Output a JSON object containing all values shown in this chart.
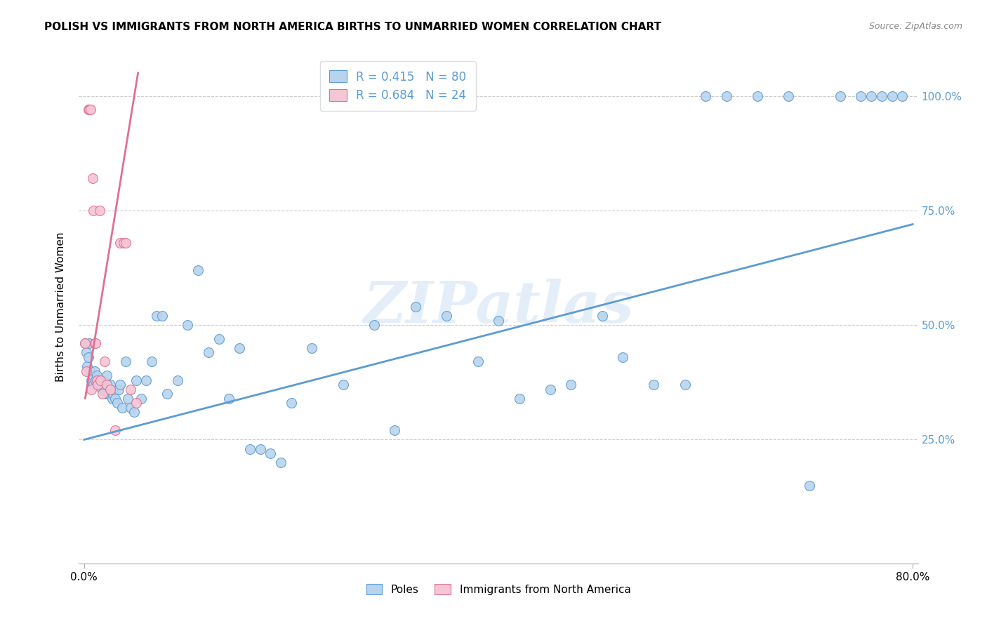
{
  "title": "POLISH VS IMMIGRANTS FROM NORTH AMERICA BIRTHS TO UNMARRIED WOMEN CORRELATION CHART",
  "source": "Source: ZipAtlas.com",
  "ylabel": "Births to Unmarried Women",
  "legend_blue_label": "Poles",
  "legend_pink_label": "Immigrants from North America",
  "legend_blue_r": "R = 0.415",
  "legend_blue_n": "N = 80",
  "legend_pink_r": "R = 0.684",
  "legend_pink_n": "N = 24",
  "blue_fill": "#b8d4ed",
  "pink_fill": "#f5c6d5",
  "blue_edge": "#5b9bd5",
  "pink_edge": "#e07090",
  "blue_line_color": "#5b9bd5",
  "pink_line_color": "#e07090",
  "watermark": "ZIPatlas",
  "blue_scatter_x": [
    0.001,
    0.002,
    0.003,
    0.004,
    0.005,
    0.006,
    0.007,
    0.008,
    0.009,
    0.01,
    0.011,
    0.012,
    0.013,
    0.014,
    0.015,
    0.016,
    0.017,
    0.018,
    0.019,
    0.02,
    0.021,
    0.022,
    0.023,
    0.025,
    0.027,
    0.028,
    0.03,
    0.032,
    0.033,
    0.035,
    0.037,
    0.04,
    0.042,
    0.045,
    0.048,
    0.05,
    0.055,
    0.06,
    0.065,
    0.07,
    0.075,
    0.08,
    0.09,
    0.1,
    0.11,
    0.12,
    0.13,
    0.14,
    0.15,
    0.16,
    0.17,
    0.18,
    0.19,
    0.2,
    0.22,
    0.25,
    0.28,
    0.3,
    0.32,
    0.35,
    0.38,
    0.4,
    0.42,
    0.45,
    0.47,
    0.5,
    0.52,
    0.55,
    0.58,
    0.6,
    0.62,
    0.65,
    0.68,
    0.7,
    0.73,
    0.75,
    0.76,
    0.77,
    0.78,
    0.79
  ],
  "blue_scatter_y": [
    0.46,
    0.44,
    0.41,
    0.43,
    0.46,
    0.4,
    0.38,
    0.39,
    0.37,
    0.4,
    0.38,
    0.39,
    0.38,
    0.37,
    0.38,
    0.37,
    0.36,
    0.38,
    0.37,
    0.36,
    0.35,
    0.39,
    0.35,
    0.37,
    0.34,
    0.35,
    0.34,
    0.33,
    0.36,
    0.37,
    0.32,
    0.42,
    0.34,
    0.32,
    0.31,
    0.38,
    0.34,
    0.38,
    0.42,
    0.52,
    0.52,
    0.35,
    0.38,
    0.5,
    0.62,
    0.44,
    0.47,
    0.34,
    0.45,
    0.23,
    0.23,
    0.22,
    0.2,
    0.33,
    0.45,
    0.37,
    0.5,
    0.27,
    0.54,
    0.52,
    0.42,
    0.51,
    0.34,
    0.36,
    0.37,
    0.52,
    0.43,
    0.37,
    0.37,
    1.0,
    1.0,
    1.0,
    1.0,
    0.15,
    1.0,
    1.0,
    1.0,
    1.0,
    1.0,
    1.0
  ],
  "pink_scatter_x": [
    0.001,
    0.002,
    0.004,
    0.005,
    0.006,
    0.007,
    0.008,
    0.009,
    0.01,
    0.011,
    0.012,
    0.013,
    0.015,
    0.016,
    0.018,
    0.02,
    0.022,
    0.025,
    0.03,
    0.035,
    0.038,
    0.04,
    0.045,
    0.05
  ],
  "pink_scatter_y": [
    0.46,
    0.4,
    0.97,
    0.97,
    0.97,
    0.36,
    0.82,
    0.75,
    0.46,
    0.46,
    0.38,
    0.37,
    0.75,
    0.38,
    0.35,
    0.42,
    0.37,
    0.36,
    0.27,
    0.68,
    0.68,
    0.68,
    0.36,
    0.33
  ],
  "blue_line_x": [
    0.0,
    0.8
  ],
  "blue_line_y": [
    0.25,
    0.72
  ],
  "pink_line_x": [
    0.001,
    0.052
  ],
  "pink_line_y": [
    0.34,
    1.05
  ],
  "xlim": [
    -0.005,
    0.805
  ],
  "ylim": [
    -0.02,
    1.1
  ],
  "xtick_vals": [
    0.0,
    0.8
  ],
  "xtick_labels": [
    "0.0%",
    "80.0%"
  ],
  "ytick_vals": [
    0.25,
    0.5,
    0.75,
    1.0
  ],
  "ytick_labels": [
    "25.0%",
    "50.0%",
    "75.0%",
    "100.0%"
  ],
  "grid_yticks": [
    0.25,
    0.5,
    0.75,
    1.0
  ],
  "marker_size": 100
}
